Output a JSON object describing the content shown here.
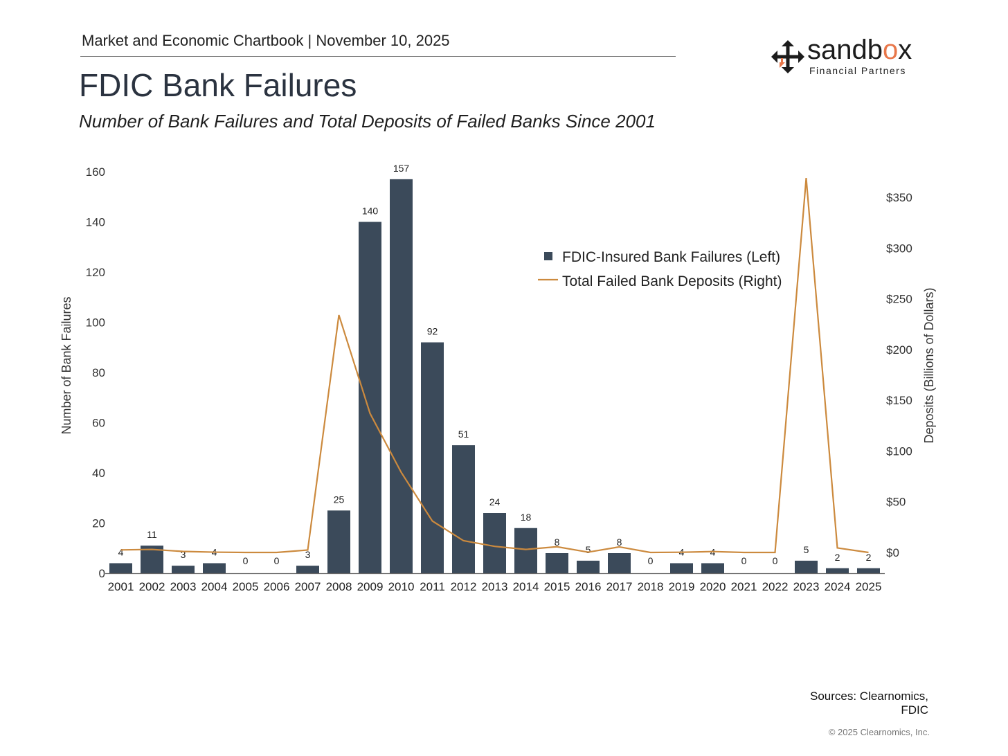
{
  "header": {
    "line": "Market and Economic Chartbook | November 10, 2025",
    "title": "FDIC Bank Failures",
    "subtitle": "Number of Bank Failures and Total Deposits of Failed Banks Since 2001"
  },
  "logo": {
    "word": "sandbox",
    "sub": "Financial Partners",
    "icon": "arrows-cross-icon"
  },
  "footer": {
    "sources_line1": "Sources: Clearnomics,",
    "sources_line2": "FDIC",
    "copyright": "© 2025 Clearnomics, Inc."
  },
  "colors": {
    "bar": "#3b4a5a",
    "line": "#cc8a3e",
    "accent": "#e8774a"
  },
  "chart_data": {
    "type": "bar",
    "categories": [
      "2001",
      "2002",
      "2003",
      "2004",
      "2005",
      "2006",
      "2007",
      "2008",
      "2009",
      "2010",
      "2011",
      "2012",
      "2013",
      "2014",
      "2015",
      "2016",
      "2017",
      "2018",
      "2019",
      "2020",
      "2021",
      "2022",
      "2023",
      "2024",
      "2025"
    ],
    "series": [
      {
        "name": "FDIC-Insured Bank Failures (Left)",
        "type": "bar",
        "axis": "left",
        "values": [
          4,
          11,
          3,
          4,
          0,
          0,
          3,
          25,
          140,
          157,
          92,
          51,
          24,
          18,
          8,
          5,
          8,
          0,
          4,
          4,
          0,
          0,
          5,
          2,
          2
        ],
        "data_labels": [
          "4",
          "11",
          "3",
          "4",
          "0",
          "0",
          "3",
          "25",
          "140",
          "157",
          "92",
          "51",
          "24",
          "18",
          "8",
          "5",
          "8",
          "0",
          "4",
          "4",
          "0",
          "0",
          "5",
          "2",
          "2"
        ]
      },
      {
        "name": "Total Failed Bank Deposits (Right)",
        "type": "line",
        "axis": "right",
        "values": [
          2.5,
          3,
          1,
          0.3,
          0,
          0,
          2.4,
          234,
          137,
          79,
          31,
          11.6,
          6,
          3,
          5.6,
          0.3,
          5.5,
          0,
          0.2,
          0.9,
          0,
          0,
          369,
          4.5,
          0
        ]
      }
    ],
    "y_left": {
      "label": "Number of Bank Failures",
      "ticks": [
        "0",
        "20",
        "40",
        "60",
        "80",
        "100",
        "120",
        "140",
        "160"
      ],
      "range": [
        0,
        160
      ]
    },
    "y_right": {
      "label": "Deposits (Billions of Dollars)",
      "ticks": [
        "$0",
        "$50",
        "$100",
        "$150",
        "$200",
        "$250",
        "$300",
        "$350"
      ],
      "range": [
        -20,
        375
      ]
    },
    "legend": {
      "position": "top-right",
      "items": [
        "FDIC-Insured Bank Failures (Left)",
        "Total Failed Bank Deposits (Right)"
      ]
    },
    "grid": false
  }
}
